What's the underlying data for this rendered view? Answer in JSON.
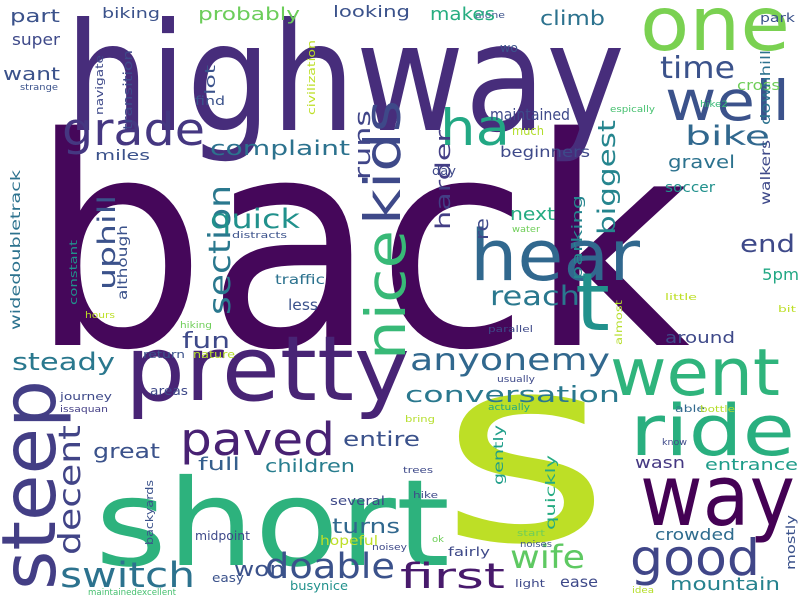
{
  "words": [
    "back",
    "highway",
    "short",
    "s",
    "pretty",
    "steep",
    "way",
    "one",
    "well",
    "hear",
    "t",
    "went",
    "ride",
    "good",
    "nice",
    "kids",
    "ha",
    "grade",
    "paved",
    "switch",
    "doable",
    "first",
    "wife",
    "section",
    "decent",
    "anyonemy",
    "reach",
    "conversation",
    "quick",
    "time",
    "bike",
    "end",
    "biggest",
    "uphill",
    "steady",
    "fun",
    "runs",
    "harder",
    "complaint",
    "great",
    "entire",
    "full",
    "children",
    "turns",
    "won",
    "mountain",
    "crowded",
    "entrance",
    "wasn",
    "around",
    "5pm",
    "next",
    "re",
    "parking",
    "gravel",
    "soccer",
    "walkers",
    "park",
    "cross",
    "downhill",
    "espically",
    "hike2",
    "alone",
    "climb",
    "makes",
    "looking",
    "probably",
    "biking",
    "part",
    "super",
    "wo",
    "want",
    "strange",
    "navigate",
    "transition",
    "lot",
    "find",
    "civilization",
    "maintained",
    "much",
    "beginners",
    "day",
    "miles",
    "widedoubletrack",
    "although",
    "constant",
    "distracts",
    "water",
    "traffic",
    "less",
    "hours",
    "hiking",
    "parallel",
    "almost",
    "little",
    "bit",
    "return",
    "nature",
    "journey",
    "usually",
    "areas",
    "bring",
    "actually",
    "able",
    "bottle",
    "issaquan",
    "know",
    "gently",
    "quickly",
    "trees",
    "hike",
    "several",
    "hopeful",
    "ok",
    "noisey",
    "fairly",
    "start",
    "noises",
    "light",
    "ease",
    "idea",
    "backyards",
    "midpoint",
    "easy",
    "busynice",
    "maintainedexcellent",
    "mostly"
  ]
}
